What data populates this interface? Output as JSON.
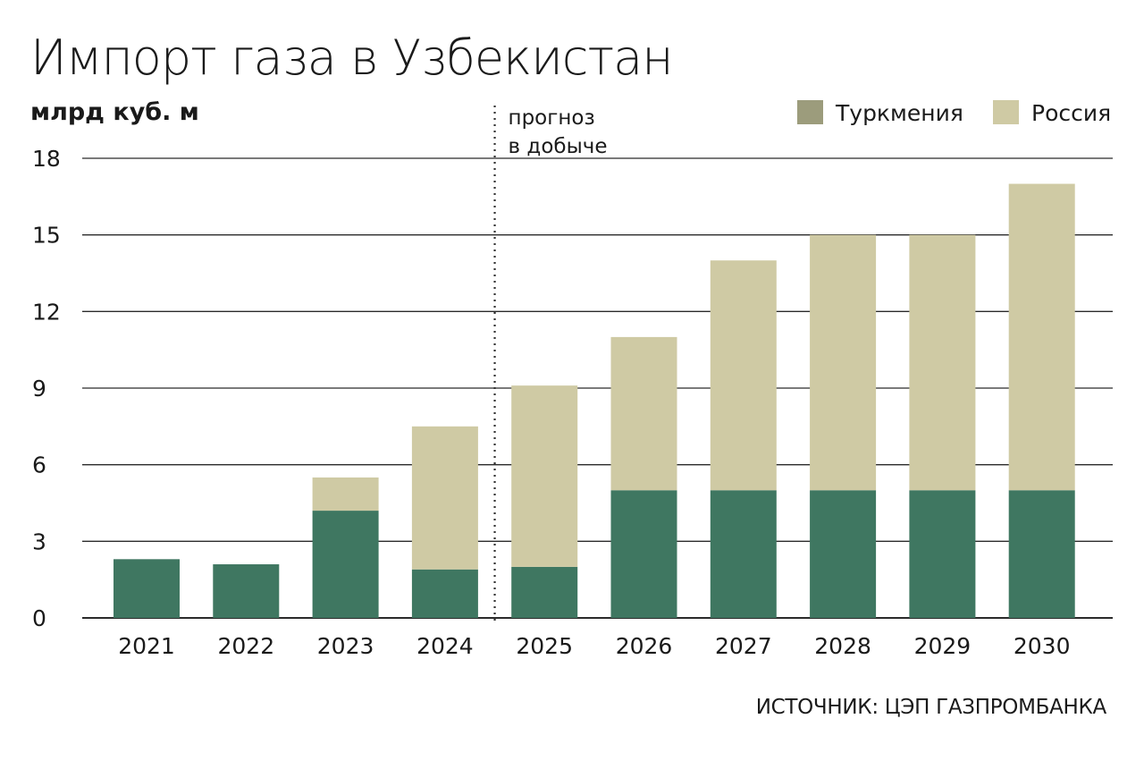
{
  "title": "Импорт газа в Узбекистан",
  "unit": "млрд куб. м",
  "source": "ИСТОЧНИК: ЦЭП ГАЗПРОМБАНКА",
  "colors": {
    "turkmenistan": "#3f7761",
    "russia": "#cfcaa4",
    "legend_turkmenistan": "#9c9c7c",
    "grid": "#2b2b2b",
    "divider": "#333333"
  },
  "chart_data": {
    "type": "bar",
    "stacked": true,
    "title": "Импорт газа в Узбекистан",
    "ylabel": "млрд куб. м",
    "xlabel": "",
    "ylim": [
      0,
      18
    ],
    "yticks": [
      0,
      3,
      6,
      9,
      12,
      15,
      18
    ],
    "grid": true,
    "legend_position": "top-right",
    "categories": [
      "2021",
      "2022",
      "2023",
      "2024",
      "2025",
      "2026",
      "2027",
      "2028",
      "2029",
      "2030"
    ],
    "series": [
      {
        "name": "Туркмения",
        "color": "#3f7761",
        "values": [
          2.3,
          2.1,
          4.2,
          1.9,
          2.0,
          5.0,
          5.0,
          5.0,
          5.0,
          5.0
        ]
      },
      {
        "name": "Россия",
        "color": "#cfcaa4",
        "values": [
          0,
          0,
          1.3,
          5.6,
          7.1,
          6.0,
          9.0,
          10.0,
          10.0,
          12.0
        ]
      }
    ],
    "forecast_divider": {
      "after_category": "2024",
      "label_lines": [
        "прогноз",
        "в добыче"
      ]
    }
  }
}
